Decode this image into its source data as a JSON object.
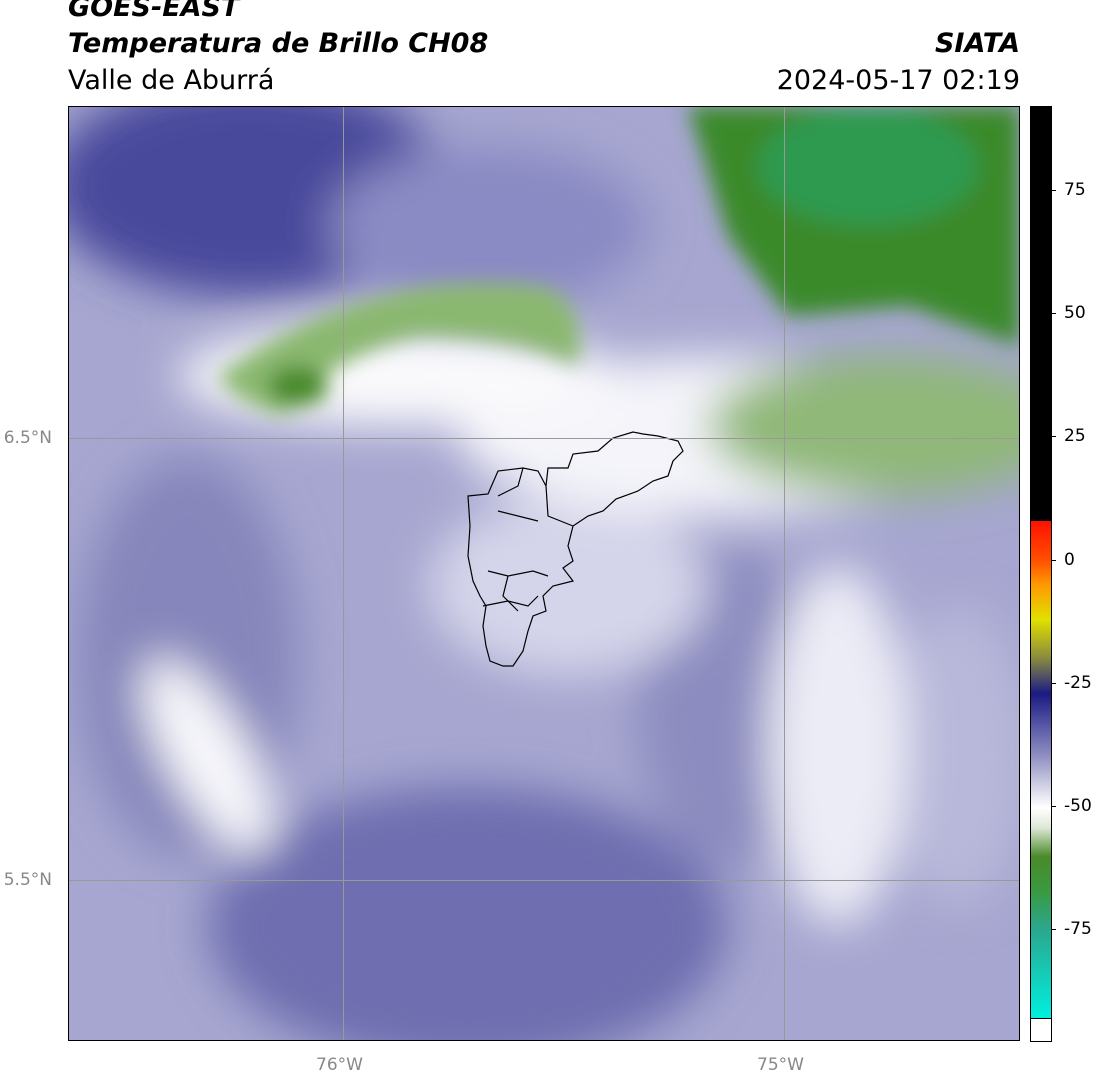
{
  "header": {
    "title": "GOES-EAST",
    "subtitle": "Temperatura de Brillo CH08",
    "region": "Valle de Aburrá",
    "source": "SIATA",
    "datetime": "2024-05-17 02:19"
  },
  "map": {
    "lat_labels": [
      "6.5°N",
      "5.5°N"
    ],
    "lon_labels": [
      "76°W",
      "75°W"
    ]
  },
  "colorbar": {
    "lim": [
      -93,
      92
    ],
    "ticks": [
      75,
      50,
      25,
      0,
      -25,
      -50,
      -75
    ]
  }
}
